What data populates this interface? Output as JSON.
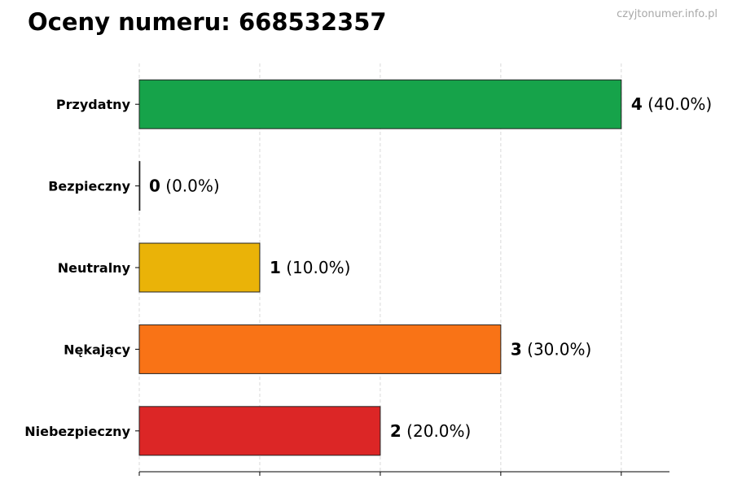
{
  "title": "Oceny numeru: 668532357",
  "watermark": "czyjtonumer.info.pl",
  "chart_data": {
    "type": "bar",
    "orientation": "horizontal",
    "categories": [
      "Przydatny",
      "Bezpieczny",
      "Neutralny",
      "Nękający",
      "Niebezpieczny"
    ],
    "values": [
      4,
      0,
      1,
      3,
      2
    ],
    "percent_labels": [
      "(40.0%)",
      "(0.0%)",
      "(10.0%)",
      "(30.0%)",
      "(20.0%)"
    ],
    "colors": [
      "#16a34a",
      "#1f2937",
      "#eab308",
      "#f97316",
      "#dc2626"
    ],
    "xlim": [
      0,
      4.4
    ],
    "xticks": [
      0,
      1,
      2,
      3,
      4
    ],
    "grid": "vertical dashed",
    "xlabel": "",
    "ylabel": ""
  }
}
